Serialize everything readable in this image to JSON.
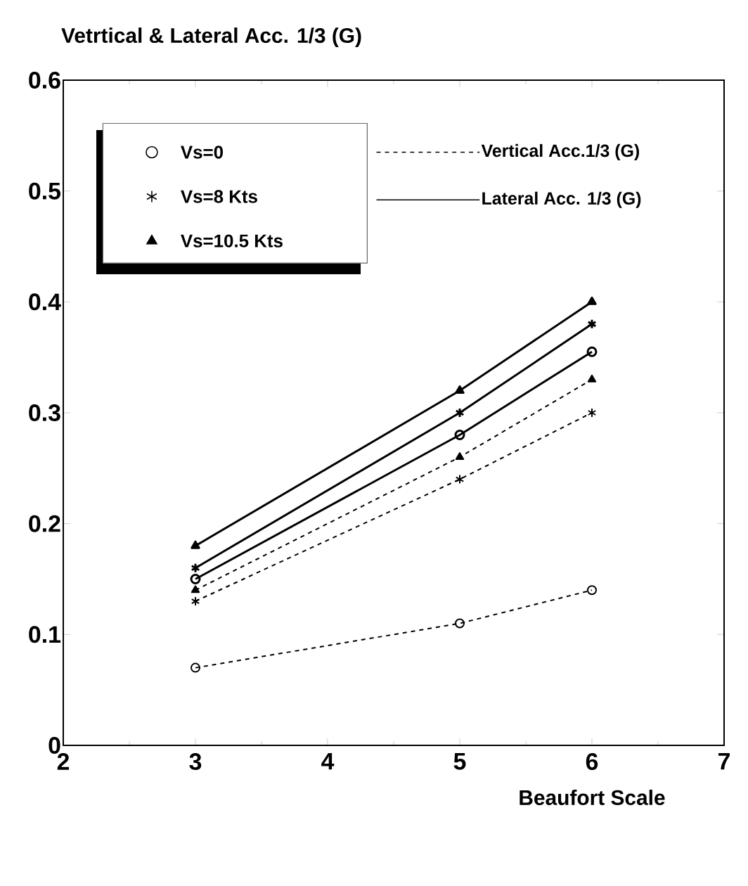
{
  "chart_data": {
    "type": "line",
    "title": "Vetrtical & Lateral Acc. 1/3 (G)",
    "xlabel": "Beaufort Scale",
    "x": [
      3,
      5,
      6
    ],
    "series": [
      {
        "name": "Vs=0",
        "color": "#000000",
        "marker": "circle",
        "line_style": "dashed",
        "values": [
          0.07,
          0.11,
          0.14
        ]
      },
      {
        "name": "Vs=8 Kts",
        "color": "#000000",
        "marker": "cross",
        "line_style": "dashed",
        "values": [
          0.13,
          0.24,
          0.3
        ]
      },
      {
        "name": "Vs=10.5 Kts",
        "color": "#000000",
        "marker": "triangle",
        "line_style": "dashed",
        "values": [
          0.14,
          0.26,
          0.33
        ]
      },
      {
        "color": "#000000",
        "marker": "circle",
        "line_style": "solid",
        "values": [
          0.15,
          0.28,
          0.355
        ]
      },
      {
        "color": "#000000",
        "marker": "cross",
        "line_style": "solid",
        "values": [
          0.16,
          0.3,
          0.38
        ]
      },
      {
        "color": "#000000",
        "marker": "triangle",
        "line_style": "solid",
        "values": [
          0.18,
          0.32,
          0.4
        ]
      }
    ],
    "annotations": [
      "Vertical Acc.1/3 (G)",
      "Lateral Acc. 1/3 (G)"
    ],
    "xlim": [
      2,
      7
    ],
    "xticks": [
      2,
      3,
      4,
      5,
      6,
      7
    ],
    "ylim": [
      0,
      0.6
    ],
    "yticks": [
      0,
      0.1,
      0.2,
      0.3,
      0.4,
      0.5,
      0.6
    ],
    "legend": "top left",
    "grid": false
  }
}
